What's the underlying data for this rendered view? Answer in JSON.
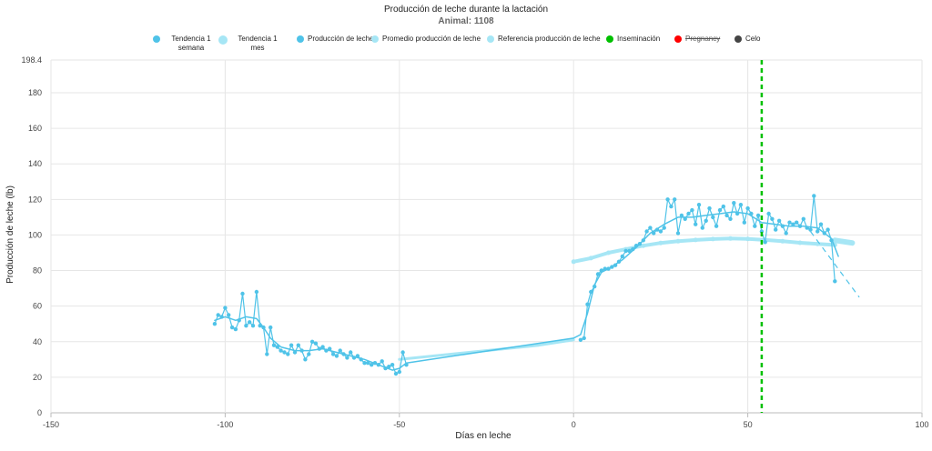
{
  "chart_data": {
    "type": "line",
    "title": "Producción de leche durante la lactación",
    "subtitle": "Animal: 1108",
    "xlabel": "Días en leche",
    "ylabel": "Producción de leche (lb)",
    "xlim": [
      -150,
      100
    ],
    "ylim": [
      0,
      198.4
    ],
    "xticks": [
      "-150",
      "-100",
      "-50",
      "0",
      "50",
      "100"
    ],
    "yticks": [
      "0",
      "20",
      "40",
      "60",
      "80",
      "100",
      "120",
      "140",
      "160",
      "180",
      "198.4"
    ],
    "grid": true,
    "legend_position": "top",
    "legend": [
      {
        "label": "Tendencia 1 semana",
        "color": "#4fc3e8"
      },
      {
        "label": "Tendencia 1 mes",
        "color": "#a6e6f5"
      },
      {
        "label": "Producción de leche",
        "color": "#4fc3e8"
      },
      {
        "label": "Promedio producción de leche",
        "color": "#a6e6f5"
      },
      {
        "label": "Referencia producción de leche",
        "color": "#a6e6f5"
      },
      {
        "label": "Inseminación",
        "color": "#00c000"
      },
      {
        "label": "Pregnancy",
        "color": "#ff0000",
        "hidden": true
      },
      {
        "label": "Celo",
        "color": "#444444"
      }
    ],
    "series": [
      {
        "name": "Producción de leche",
        "color": "#4fc3e8",
        "points": [
          [
            -103,
            50
          ],
          [
            -102,
            55
          ],
          [
            -101,
            54
          ],
          [
            -100,
            59
          ],
          [
            -99,
            55
          ],
          [
            -98,
            48
          ],
          [
            -97,
            47
          ],
          [
            -96,
            52
          ],
          [
            -95,
            67
          ],
          [
            -94,
            49
          ],
          [
            -93,
            51
          ],
          [
            -92,
            49
          ],
          [
            -91,
            68
          ],
          [
            -90,
            49
          ],
          [
            -89,
            48
          ],
          [
            -88,
            33
          ],
          [
            -87,
            48
          ],
          [
            -86,
            38
          ],
          [
            -85,
            37
          ],
          [
            -84,
            35
          ],
          [
            -83,
            34
          ],
          [
            -82,
            33
          ],
          [
            -81,
            38
          ],
          [
            -80,
            34
          ],
          [
            -79,
            38
          ],
          [
            -78,
            35
          ],
          [
            -77,
            30
          ],
          [
            -76,
            33
          ],
          [
            -75,
            40
          ],
          [
            -74,
            39
          ],
          [
            -73,
            36
          ],
          [
            -72,
            37
          ],
          [
            -71,
            35
          ],
          [
            -70,
            36
          ],
          [
            -69,
            33
          ],
          [
            -68,
            32
          ],
          [
            -67,
            35
          ],
          [
            -66,
            33
          ],
          [
            -65,
            31
          ],
          [
            -64,
            34
          ],
          [
            -63,
            31
          ],
          [
            -62,
            32
          ],
          [
            -61,
            30
          ],
          [
            -60,
            28
          ],
          [
            -59,
            28
          ],
          [
            -58,
            27
          ],
          [
            -57,
            28
          ],
          [
            -56,
            27
          ],
          [
            -55,
            29
          ],
          [
            -54,
            25
          ],
          [
            -53,
            26
          ],
          [
            -52,
            27
          ],
          [
            -51,
            22
          ],
          [
            -50,
            23
          ],
          [
            -49,
            34
          ],
          [
            -48,
            27
          ],
          [
            2,
            41
          ],
          [
            3,
            42
          ],
          [
            4,
            61
          ],
          [
            5,
            68
          ],
          [
            6,
            71
          ],
          [
            7,
            78
          ],
          [
            8,
            80
          ],
          [
            9,
            81
          ],
          [
            10,
            81
          ],
          [
            11,
            82
          ],
          [
            12,
            83
          ],
          [
            13,
            85
          ],
          [
            14,
            88
          ],
          [
            15,
            91
          ],
          [
            16,
            91
          ],
          [
            17,
            92
          ],
          [
            18,
            94
          ],
          [
            19,
            95
          ],
          [
            20,
            97
          ],
          [
            21,
            102
          ],
          [
            22,
            104
          ],
          [
            23,
            101
          ],
          [
            24,
            103
          ],
          [
            25,
            102
          ],
          [
            26,
            104
          ],
          [
            27,
            120
          ],
          [
            28,
            116
          ],
          [
            29,
            120
          ],
          [
            30,
            101
          ],
          [
            31,
            111
          ],
          [
            32,
            109
          ],
          [
            33,
            112
          ],
          [
            34,
            114
          ],
          [
            35,
            106
          ],
          [
            36,
            117
          ],
          [
            37,
            104
          ],
          [
            38,
            108
          ],
          [
            39,
            115
          ],
          [
            40,
            110
          ],
          [
            41,
            105
          ],
          [
            42,
            114
          ],
          [
            43,
            116
          ],
          [
            44,
            111
          ],
          [
            45,
            109
          ],
          [
            46,
            118
          ],
          [
            47,
            112
          ],
          [
            48,
            117
          ],
          [
            49,
            107
          ],
          [
            50,
            115
          ],
          [
            51,
            112
          ],
          [
            52,
            105
          ],
          [
            53,
            111
          ],
          [
            54,
            102
          ],
          [
            55,
            96
          ],
          [
            56,
            112
          ],
          [
            57,
            109
          ],
          [
            58,
            103
          ],
          [
            59,
            108
          ],
          [
            60,
            105
          ],
          [
            61,
            101
          ],
          [
            62,
            107
          ],
          [
            63,
            106
          ],
          [
            64,
            107
          ],
          [
            65,
            105
          ],
          [
            66,
            109
          ],
          [
            67,
            104
          ],
          [
            68,
            103
          ],
          [
            69,
            122
          ],
          [
            70,
            102
          ],
          [
            71,
            106
          ],
          [
            72,
            101
          ],
          [
            73,
            103
          ],
          [
            74,
            97
          ],
          [
            75,
            74
          ]
        ]
      },
      {
        "name": "Tendencia 1 semana",
        "color": "#4fc3e8",
        "points": [
          [
            -103,
            52
          ],
          [
            -100,
            54
          ],
          [
            -97,
            52
          ],
          [
            -94,
            54
          ],
          [
            -91,
            53
          ],
          [
            -89,
            48
          ],
          [
            -87,
            42
          ],
          [
            -84,
            37
          ],
          [
            -80,
            35
          ],
          [
            -76,
            35
          ],
          [
            -72,
            36
          ],
          [
            -68,
            34
          ],
          [
            -64,
            32
          ],
          [
            -60,
            30
          ],
          [
            -56,
            27
          ],
          [
            -52,
            24
          ],
          [
            -50,
            25
          ],
          [
            -48,
            28
          ],
          [
            0,
            42
          ],
          [
            2,
            44
          ],
          [
            4,
            56
          ],
          [
            6,
            72
          ],
          [
            8,
            79
          ],
          [
            10,
            81
          ],
          [
            14,
            86
          ],
          [
            18,
            93
          ],
          [
            22,
            101
          ],
          [
            26,
            106
          ],
          [
            30,
            110
          ],
          [
            34,
            110
          ],
          [
            38,
            111
          ],
          [
            42,
            112
          ],
          [
            46,
            113
          ],
          [
            50,
            112
          ],
          [
            54,
            107
          ],
          [
            58,
            106
          ],
          [
            62,
            105
          ],
          [
            66,
            105
          ],
          [
            70,
            104
          ],
          [
            74,
            98
          ],
          [
            76,
            88
          ]
        ]
      },
      {
        "name": "Tendencia 1 mes",
        "color": "#a6e6f5",
        "points": [
          [
            -50,
            30
          ],
          [
            -40,
            32
          ],
          [
            -30,
            34
          ],
          [
            -20,
            36
          ],
          [
            -10,
            38
          ],
          [
            0,
            41
          ]
        ]
      },
      {
        "name": "Promedio producción de leche",
        "color": "#a6e6f5",
        "points": [
          [
            0,
            85
          ],
          [
            5,
            87
          ],
          [
            10,
            90
          ],
          [
            15,
            92
          ],
          [
            20,
            94
          ],
          [
            25,
            95.5
          ],
          [
            30,
            96.5
          ],
          [
            35,
            97.2
          ],
          [
            40,
            97.7
          ],
          [
            45,
            98
          ],
          [
            50,
            97.8
          ],
          [
            55,
            97.2
          ],
          [
            60,
            96.5
          ],
          [
            65,
            95.6
          ],
          [
            70,
            95
          ],
          [
            75,
            94.4
          ]
        ]
      },
      {
        "name": "Referencia producción de leche",
        "color": "#a6e6f5",
        "points": [
          [
            75,
            97
          ],
          [
            80,
            95.5
          ]
        ]
      }
    ],
    "projection": [
      [
        68,
        102
      ],
      [
        82,
        65
      ]
    ],
    "inseminations_x": [
      54
    ]
  }
}
